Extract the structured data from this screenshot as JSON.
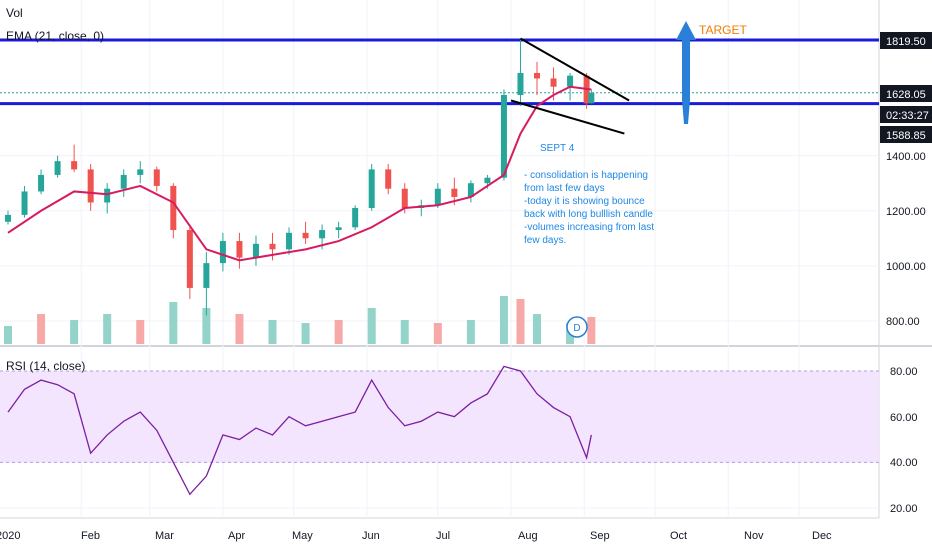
{
  "legend": {
    "vol": "Vol",
    "ema": "EMA (21, close, 0)",
    "rsi": "RSI (14, close)"
  },
  "annotations": {
    "target": "TARGET",
    "note_title": "SEPT 4",
    "note_lines": [
      "- consolidation is happening",
      "from last few days",
      "-today it is showing bounce",
      "back with long bulllish candle",
      "-volumes increasing from last",
      "few days."
    ],
    "dividend_badge": "D"
  },
  "price_axis": {
    "ticks": [
      "1400.00",
      "1200.00",
      "1000.00",
      "800.00"
    ],
    "tick_values": [
      1400,
      1200,
      1000,
      800
    ],
    "tags": [
      {
        "label": "1819.50",
        "kind": "resistance"
      },
      {
        "label": "1628.05",
        "kind": "last"
      },
      {
        "label": "02:33:27",
        "kind": "countdown"
      },
      {
        "label": "1588.85",
        "kind": "support"
      }
    ]
  },
  "rsi_axis": {
    "ticks": [
      "80.00",
      "60.00",
      "40.00",
      "20.00"
    ],
    "tick_values": [
      80,
      60,
      40,
      20
    ]
  },
  "time_axis": {
    "labels": [
      "2020",
      "Feb",
      "Mar",
      "Apr",
      "May",
      "Jun",
      "Jul",
      "Aug",
      "Sep",
      "Oct",
      "Nov",
      "Dec"
    ]
  },
  "colors": {
    "up": "#26a69a",
    "down": "#ef5350",
    "vol_up": "#94d3c9",
    "vol_down": "#f7a9a7",
    "ema": "#d81b60",
    "level": "#1a1ad9",
    "rsi_line": "#7b1fa2",
    "rsi_band": "#f3e5fd",
    "arrow": "#2a7fd8",
    "target": "#f57c00",
    "note": "#1e88e5",
    "tag_bg": "#131722"
  },
  "chart_data": {
    "type": "candlestick",
    "x_range": [
      "2020-01",
      "2020-12"
    ],
    "y_range": [
      740,
      1880
    ],
    "levels": [
      1819.5,
      1588.85
    ],
    "last_price": 1628.05,
    "ohlc": [
      {
        "x": "2020-01-01",
        "o": 1160,
        "h": 1200,
        "l": 1150,
        "c": 1185
      },
      {
        "x": "2020-01-08",
        "o": 1185,
        "h": 1290,
        "l": 1175,
        "c": 1270
      },
      {
        "x": "2020-01-15",
        "o": 1270,
        "h": 1350,
        "l": 1260,
        "c": 1330
      },
      {
        "x": "2020-01-22",
        "o": 1330,
        "h": 1400,
        "l": 1320,
        "c": 1380
      },
      {
        "x": "2020-01-29",
        "o": 1380,
        "h": 1440,
        "l": 1340,
        "c": 1350
      },
      {
        "x": "2020-02-05",
        "o": 1350,
        "h": 1370,
        "l": 1200,
        "c": 1230
      },
      {
        "x": "2020-02-12",
        "o": 1230,
        "h": 1300,
        "l": 1190,
        "c": 1280
      },
      {
        "x": "2020-02-19",
        "o": 1280,
        "h": 1350,
        "l": 1250,
        "c": 1330
      },
      {
        "x": "2020-02-26",
        "o": 1330,
        "h": 1380,
        "l": 1300,
        "c": 1350
      },
      {
        "x": "2020-03-04",
        "o": 1350,
        "h": 1360,
        "l": 1270,
        "c": 1290
      },
      {
        "x": "2020-03-11",
        "o": 1290,
        "h": 1300,
        "l": 1100,
        "c": 1130
      },
      {
        "x": "2020-03-18",
        "o": 1130,
        "h": 1150,
        "l": 880,
        "c": 920
      },
      {
        "x": "2020-03-25",
        "o": 920,
        "h": 1050,
        "l": 820,
        "c": 1010
      },
      {
        "x": "2020-04-01",
        "o": 1010,
        "h": 1120,
        "l": 980,
        "c": 1090
      },
      {
        "x": "2020-04-08",
        "o": 1090,
        "h": 1120,
        "l": 990,
        "c": 1030
      },
      {
        "x": "2020-04-15",
        "o": 1030,
        "h": 1110,
        "l": 1000,
        "c": 1080
      },
      {
        "x": "2020-04-22",
        "o": 1080,
        "h": 1120,
        "l": 1020,
        "c": 1060
      },
      {
        "x": "2020-04-29",
        "o": 1060,
        "h": 1140,
        "l": 1040,
        "c": 1120
      },
      {
        "x": "2020-05-06",
        "o": 1120,
        "h": 1160,
        "l": 1080,
        "c": 1100
      },
      {
        "x": "2020-05-13",
        "o": 1100,
        "h": 1150,
        "l": 1060,
        "c": 1130
      },
      {
        "x": "2020-05-20",
        "o": 1130,
        "h": 1160,
        "l": 1100,
        "c": 1140
      },
      {
        "x": "2020-05-27",
        "o": 1140,
        "h": 1220,
        "l": 1130,
        "c": 1210
      },
      {
        "x": "2020-06-03",
        "o": 1210,
        "h": 1370,
        "l": 1200,
        "c": 1350
      },
      {
        "x": "2020-06-10",
        "o": 1350,
        "h": 1370,
        "l": 1260,
        "c": 1280
      },
      {
        "x": "2020-06-17",
        "o": 1280,
        "h": 1300,
        "l": 1190,
        "c": 1210
      },
      {
        "x": "2020-06-24",
        "o": 1210,
        "h": 1240,
        "l": 1180,
        "c": 1220
      },
      {
        "x": "2020-07-01",
        "o": 1220,
        "h": 1300,
        "l": 1210,
        "c": 1280
      },
      {
        "x": "2020-07-08",
        "o": 1280,
        "h": 1320,
        "l": 1220,
        "c": 1250
      },
      {
        "x": "2020-07-15",
        "o": 1250,
        "h": 1310,
        "l": 1230,
        "c": 1300
      },
      {
        "x": "2020-07-22",
        "o": 1300,
        "h": 1330,
        "l": 1280,
        "c": 1320
      },
      {
        "x": "2020-07-29",
        "o": 1320,
        "h": 1640,
        "l": 1310,
        "c": 1620
      },
      {
        "x": "2020-08-05",
        "o": 1620,
        "h": 1819.5,
        "l": 1580,
        "c": 1700
      },
      {
        "x": "2020-08-12",
        "o": 1700,
        "h": 1740,
        "l": 1620,
        "c": 1680
      },
      {
        "x": "2020-08-19",
        "o": 1680,
        "h": 1720,
        "l": 1600,
        "c": 1650
      },
      {
        "x": "2020-08-26",
        "o": 1650,
        "h": 1700,
        "l": 1600,
        "c": 1690
      },
      {
        "x": "2020-09-02",
        "o": 1690,
        "h": 1700,
        "l": 1570,
        "c": 1590
      },
      {
        "x": "2020-09-04",
        "o": 1590,
        "h": 1640,
        "l": 1588.85,
        "c": 1628.05
      }
    ],
    "ema": [
      [
        "2020-01-01",
        1120
      ],
      [
        "2020-01-15",
        1200
      ],
      [
        "2020-01-29",
        1270
      ],
      [
        "2020-02-12",
        1260
      ],
      [
        "2020-02-26",
        1290
      ],
      [
        "2020-03-11",
        1230
      ],
      [
        "2020-03-25",
        1060
      ],
      [
        "2020-04-08",
        1020
      ],
      [
        "2020-04-22",
        1040
      ],
      [
        "2020-05-06",
        1060
      ],
      [
        "2020-05-20",
        1090
      ],
      [
        "2020-06-03",
        1140
      ],
      [
        "2020-06-17",
        1210
      ],
      [
        "2020-07-01",
        1220
      ],
      [
        "2020-07-15",
        1250
      ],
      [
        "2020-07-29",
        1330
      ],
      [
        "2020-08-05",
        1480
      ],
      [
        "2020-08-12",
        1580
      ],
      [
        "2020-08-19",
        1620
      ],
      [
        "2020-08-26",
        1650
      ],
      [
        "2020-09-04",
        1640
      ]
    ],
    "trendlines": [
      {
        "from": [
          "2020-08-05",
          1825
        ],
        "to": [
          "2020-09-20",
          1600
        ]
      },
      {
        "from": [
          "2020-08-01",
          1600
        ],
        "to": [
          "2020-09-18",
          1480
        ]
      }
    ],
    "rsi": [
      [
        "2020-01-01",
        62
      ],
      [
        "2020-01-08",
        72
      ],
      [
        "2020-01-15",
        76
      ],
      [
        "2020-01-22",
        74
      ],
      [
        "2020-01-29",
        70
      ],
      [
        "2020-02-05",
        44
      ],
      [
        "2020-02-12",
        52
      ],
      [
        "2020-02-19",
        58
      ],
      [
        "2020-02-26",
        62
      ],
      [
        "2020-03-04",
        54
      ],
      [
        "2020-03-11",
        40
      ],
      [
        "2020-03-18",
        26
      ],
      [
        "2020-03-25",
        34
      ],
      [
        "2020-04-01",
        52
      ],
      [
        "2020-04-08",
        50
      ],
      [
        "2020-04-15",
        55
      ],
      [
        "2020-04-22",
        52
      ],
      [
        "2020-04-29",
        60
      ],
      [
        "2020-05-06",
        56
      ],
      [
        "2020-05-13",
        58
      ],
      [
        "2020-05-20",
        60
      ],
      [
        "2020-05-27",
        62
      ],
      [
        "2020-06-03",
        76
      ],
      [
        "2020-06-10",
        64
      ],
      [
        "2020-06-17",
        56
      ],
      [
        "2020-06-24",
        58
      ],
      [
        "2020-07-01",
        62
      ],
      [
        "2020-07-08",
        60
      ],
      [
        "2020-07-15",
        66
      ],
      [
        "2020-07-22",
        70
      ],
      [
        "2020-07-29",
        82
      ],
      [
        "2020-08-05",
        80
      ],
      [
        "2020-08-12",
        70
      ],
      [
        "2020-08-19",
        64
      ],
      [
        "2020-08-26",
        60
      ],
      [
        "2020-09-02",
        42
      ],
      [
        "2020-09-04",
        52
      ]
    ],
    "rsi_band": [
      40,
      80
    ],
    "volume": [
      [
        "2020-01-01",
        0.3
      ],
      [
        "2020-01-15",
        0.5
      ],
      [
        "2020-01-29",
        0.4
      ],
      [
        "2020-02-12",
        0.5
      ],
      [
        "2020-02-26",
        0.4
      ],
      [
        "2020-03-11",
        0.7
      ],
      [
        "2020-03-25",
        0.6
      ],
      [
        "2020-04-08",
        0.5
      ],
      [
        "2020-04-22",
        0.4
      ],
      [
        "2020-05-06",
        0.35
      ],
      [
        "2020-05-20",
        0.4
      ],
      [
        "2020-06-03",
        0.6
      ],
      [
        "2020-06-17",
        0.4
      ],
      [
        "2020-07-01",
        0.35
      ],
      [
        "2020-07-15",
        0.4
      ],
      [
        "2020-07-29",
        0.8
      ],
      [
        "2020-08-05",
        0.75
      ],
      [
        "2020-08-12",
        0.5
      ],
      [
        "2020-08-26",
        0.35
      ],
      [
        "2020-09-04",
        0.45
      ]
    ]
  }
}
